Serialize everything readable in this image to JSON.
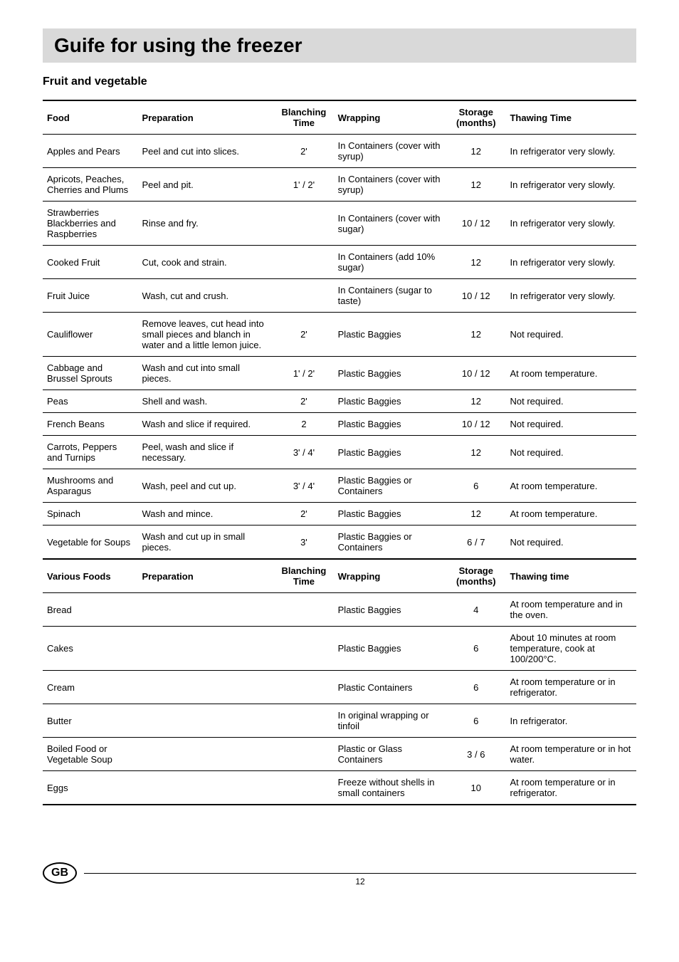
{
  "title": "Guife for using the freezer",
  "subtitle": "Fruit and vegetable",
  "headers": {
    "food": "Food",
    "prep": "Preparation",
    "blanch": "Blanching Time",
    "wrap": "Wrapping",
    "storage": "Storage (months)",
    "thaw": "Thawing Time"
  },
  "rows1": [
    {
      "food": "Apples and Pears",
      "prep": "Peel and cut into slices.",
      "blanch": "2'",
      "wrap": "In Containers (cover with syrup)",
      "storage": "12",
      "thaw": "In refrigerator very slowly."
    },
    {
      "food": "Apricots, Peaches, Cherries and Plums",
      "prep": "Peel and pit.",
      "blanch": "1' / 2'",
      "wrap": "In Containers (cover with syrup)",
      "storage": "12",
      "thaw": "In refrigerator very slowly."
    },
    {
      "food": "Strawberries Blackberries and Raspberries",
      "prep": "Rinse and fry.",
      "blanch": "",
      "wrap": "In Containers (cover with sugar)",
      "storage": "10 / 12",
      "thaw": "In refrigerator very slowly."
    },
    {
      "food": "Cooked Fruit",
      "prep": "Cut, cook and strain.",
      "blanch": "",
      "wrap": "In Containers (add 10% sugar)",
      "storage": "12",
      "thaw": "In refrigerator very slowly."
    },
    {
      "food": "Fruit Juice",
      "prep": "Wash, cut and crush.",
      "blanch": "",
      "wrap": "In Containers (sugar to taste)",
      "storage": "10 / 12",
      "thaw": "In refrigerator very slowly."
    },
    {
      "food": "Cauliflower",
      "prep": "Remove leaves, cut head into small pieces and blanch in water and a little lemon juice.",
      "blanch": "2'",
      "wrap": "Plastic Baggies",
      "storage": "12",
      "thaw": "Not required."
    },
    {
      "food": "Cabbage and Brussel Sprouts",
      "prep": "Wash and cut into small pieces.",
      "blanch": "1' / 2'",
      "wrap": "Plastic Baggies",
      "storage": "10 / 12",
      "thaw": "At room temperature."
    },
    {
      "food": "Peas",
      "prep": "Shell and wash.",
      "blanch": "2'",
      "wrap": "Plastic Baggies",
      "storage": "12",
      "thaw": "Not required."
    },
    {
      "food": "French Beans",
      "prep": "Wash and slice if required.",
      "blanch": "2",
      "wrap": "Plastic Baggies",
      "storage": "10 / 12",
      "thaw": "Not required."
    },
    {
      "food": "Carrots, Peppers and Turnips",
      "prep": "Peel, wash and slice if necessary.",
      "blanch": "3' / 4'",
      "wrap": "Plastic Baggies",
      "storage": "12",
      "thaw": "Not required."
    },
    {
      "food": "Mushrooms and Asparagus",
      "prep": "Wash, peel and cut up.",
      "blanch": "3' / 4'",
      "wrap": "Plastic Baggies or Containers",
      "storage": "6",
      "thaw": "At room temperature."
    },
    {
      "food": "Spinach",
      "prep": "Wash and mince.",
      "blanch": "2'",
      "wrap": "Plastic Baggies",
      "storage": "12",
      "thaw": "At room temperature."
    },
    {
      "food": "Vegetable for Soups",
      "prep": "Wash and cut up in small pieces.",
      "blanch": "3'",
      "wrap": "Plastic Baggies or Containers",
      "storage": "6 / 7",
      "thaw": "Not required."
    }
  ],
  "headers2": {
    "food": "Various Foods",
    "prep": "Preparation",
    "blanch": "Blanching Time",
    "wrap": "Wrapping",
    "storage": "Storage (months)",
    "thaw": "Thawing time"
  },
  "rows2": [
    {
      "food": "Bread",
      "prep": "",
      "blanch": "",
      "wrap": "Plastic Baggies",
      "storage": "4",
      "thaw": "At room temperature and in the oven."
    },
    {
      "food": "Cakes",
      "prep": "",
      "blanch": "",
      "wrap": "Plastic Baggies",
      "storage": "6",
      "thaw": "About 10 minutes at room temperature, cook at 100/200°C."
    },
    {
      "food": "Cream",
      "prep": "",
      "blanch": "",
      "wrap": "Plastic Containers",
      "storage": "6",
      "thaw": "At room temperature or in refrigerator."
    },
    {
      "food": "Butter",
      "prep": "",
      "blanch": "",
      "wrap": "In original wrapping or tinfoil",
      "storage": "6",
      "thaw": "In refrigerator."
    },
    {
      "food": "Boiled Food or Vegetable Soup",
      "prep": "",
      "blanch": "",
      "wrap": "Plastic or Glass Containers",
      "storage": "3 / 6",
      "thaw": "At room temperature or in hot water."
    },
    {
      "food": "Eggs",
      "prep": "",
      "blanch": "",
      "wrap": "Freeze without shells in small containers",
      "storage": "10",
      "thaw": "At room temperature or in refrigerator."
    }
  ],
  "footer": {
    "badge": "GB",
    "page": "12"
  }
}
